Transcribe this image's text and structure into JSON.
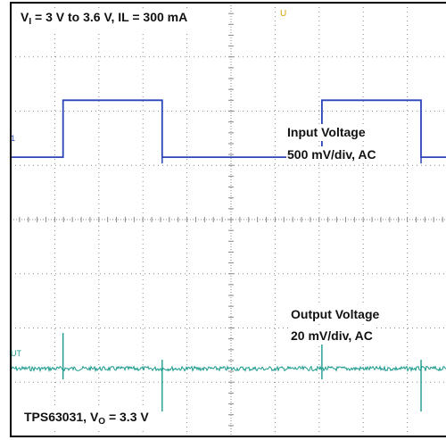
{
  "labels": {
    "conditions": {
      "v_prefix": "V",
      "v_sub": "I",
      "v_rest": " = 3 V to 3.6 V, IL = 300 mA"
    },
    "part": {
      "prefix": "TPS63031, V",
      "sub": "O",
      "rest": " = 3.3 V"
    },
    "input_title": "Input Voltage",
    "input_scale": "500 mV/div, AC",
    "output_title": "Output Voltage",
    "output_scale": "20 mV/div, AC",
    "ch1_marker": "1",
    "ch2_marker": "UT",
    "trigger_marker": "U"
  },
  "colors": {
    "input_trace": "#2b45b8",
    "output_trace": "#1a9a8c",
    "grid": "#8a8a8a",
    "frame": "#000000"
  },
  "chart_data": {
    "type": "line",
    "grid": true,
    "divisions": {
      "x": 10,
      "y": 8
    },
    "series": [
      {
        "color": "#2b45b8",
        "x": [
          0,
          1.9,
          1.9,
          5.5,
          5.5,
          11.3,
          11.3,
          14.9,
          14.9,
          16
        ],
        "y": [
          0,
          0,
          1,
          1,
          0,
          0,
          1,
          1,
          0,
          0
        ],
        "step_levels_div": {
          "low": 5.15,
          "high": 6.2
        }
      },
      {
        "color": "#1a9a8c",
        "baseline_div": 1.25,
        "spikes_at_x": [
          1.9,
          5.5,
          11.3,
          14.9
        ]
      }
    ]
  }
}
